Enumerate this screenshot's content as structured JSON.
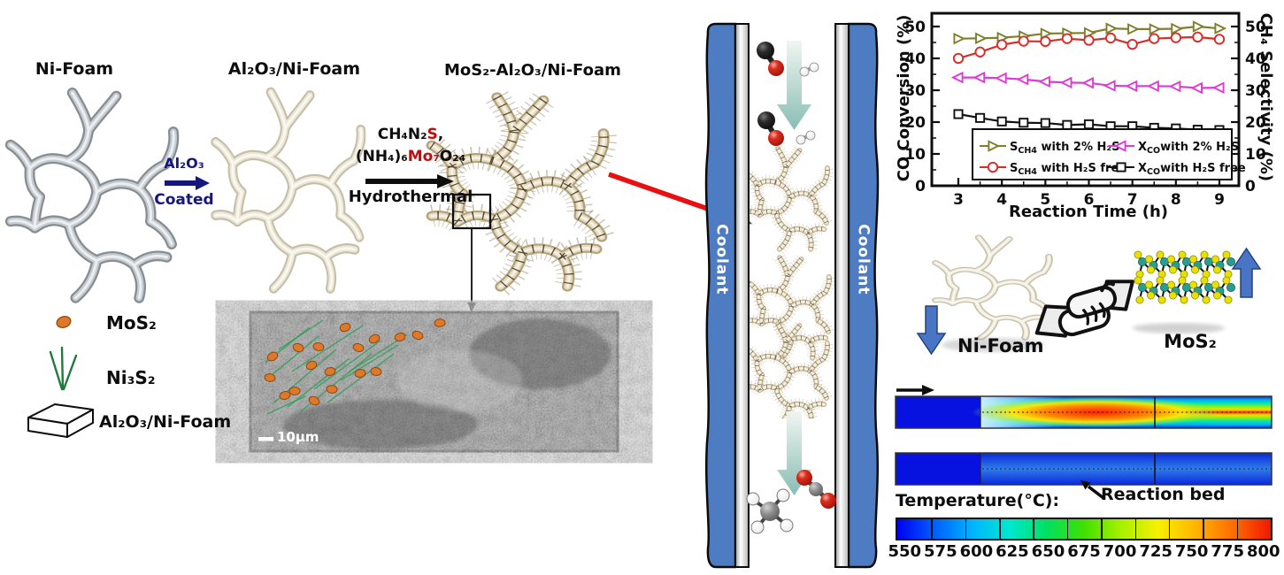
{
  "synthesis": {
    "step1_title": "Ni-Foam",
    "step2_title": "Al₂O₃/Ni-Foam",
    "step3_title": "MoS₂-Al₂O₃/Ni-Foam",
    "coating_arrow": {
      "label_top": "Al₂O₃",
      "label_bottom": "Coated"
    },
    "hydrothermal_arrow": {
      "reagent1_prefix": "CH₄N₂",
      "reagent1_red": "S",
      "reagent1_suffix": ",",
      "reagent2_prefix": "(NH₄)₆",
      "reagent2_red": "Mo₇",
      "reagent2_suffix": "O₂₄",
      "label_bottom": "Hydrothermal"
    }
  },
  "materials_legend": {
    "items": [
      {
        "icon": "mos2-particle-icon",
        "label": "MoS₂"
      },
      {
        "icon": "ni3s2-needles-icon",
        "label": "Ni₃S₂"
      },
      {
        "icon": "al2o3-nifoam-slab-icon",
        "label": "Al₂O₃/Ni-Foam"
      }
    ]
  },
  "sem_inset": {
    "scale_bar": "10μm"
  },
  "reactor": {
    "left_channel_label": "Coolant",
    "right_channel_label": "Coolant"
  },
  "synergy": {
    "left_label": "Ni-Foam",
    "right_label": "MoS₂"
  },
  "temperature_panel": {
    "title": "Temperature(°C):",
    "annotation": "Reaction bed",
    "scale_labels": [
      "550",
      "575",
      "600",
      "625",
      "650",
      "675",
      "700",
      "725",
      "750",
      "775",
      "800"
    ],
    "colorbar_colors": [
      "#0000f0",
      "#0060ff",
      "#00b4ff",
      "#00e8d0",
      "#00e060",
      "#40e000",
      "#a8f000",
      "#f8f000",
      "#ffb400",
      "#ff6c00",
      "#f01800"
    ]
  },
  "chart_data": {
    "type": "line",
    "xlabel": "Reaction Time (h)",
    "ylabel_left": "CO Conversion (%)",
    "ylabel_right": "CH₄ Selectivity (%)",
    "xlim": [
      2.5,
      9.4
    ],
    "ylim": [
      0,
      54
    ],
    "xticks": [
      3,
      4,
      5,
      6,
      7,
      8,
      9
    ],
    "yticks": [
      0,
      10,
      20,
      30,
      40,
      50
    ],
    "grid": false,
    "legend_position": "inside-bottom",
    "x": [
      3,
      3.5,
      4,
      4.5,
      5,
      5.5,
      6,
      6.5,
      7,
      7.5,
      8,
      8.5,
      9
    ],
    "series": [
      {
        "name_parts": {
          "main": "S",
          "sub": "CH4",
          "rest": " with 2% H₂S"
        },
        "marker": "triangle-right",
        "color": "#7f7f2a",
        "values": [
          46.2,
          46.3,
          46.5,
          47.0,
          47.8,
          47.9,
          48.0,
          49.4,
          49.2,
          49.2,
          49.3,
          50.0,
          49.4
        ]
      },
      {
        "name_parts": {
          "main": "S",
          "sub": "CH4",
          "rest": " with H₂S free"
        },
        "marker": "circle",
        "color": "#d92c28",
        "values": [
          40.0,
          42.0,
          44.3,
          45.4,
          45.3,
          46.2,
          45.7,
          46.4,
          44.4,
          46.2,
          46.5,
          46.7,
          46.0
        ]
      },
      {
        "name_parts": {
          "main": "X",
          "sub": "CO",
          "rest": "with 2% H₂S"
        },
        "marker": "triangle-left",
        "color": "#dd3bd4",
        "values": [
          34.0,
          34.0,
          33.8,
          33.4,
          32.7,
          32.4,
          32.3,
          31.4,
          31.3,
          31.3,
          31.2,
          30.7,
          30.8
        ]
      },
      {
        "name_parts": {
          "main": "X",
          "sub": "CO",
          "rest": "with H₂S free"
        },
        "marker": "square",
        "color": "#111111",
        "values": [
          22.5,
          21.3,
          20.2,
          19.8,
          19.7,
          19.1,
          19.3,
          18.7,
          18.7,
          18.2,
          18.0,
          17.6,
          17.5
        ]
      }
    ]
  }
}
